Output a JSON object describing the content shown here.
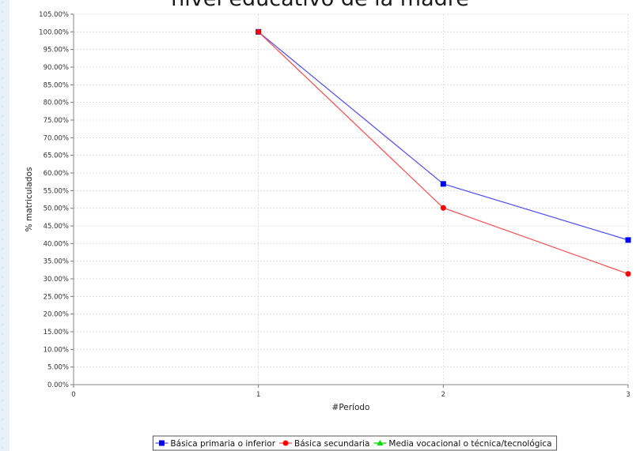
{
  "chart_data": {
    "type": "line",
    "title": "nivel educativo de la madre",
    "xlabel": "#Período",
    "ylabel": "% matriculados",
    "xlim": [
      0,
      3
    ],
    "ylim": [
      0,
      105
    ],
    "x_ticks": [
      "0",
      "1",
      "2",
      "3"
    ],
    "y_ticks": [
      "0.00%",
      "5.00%",
      "10.00%",
      "15.00%",
      "20.00%",
      "25.00%",
      "30.00%",
      "35.00%",
      "40.00%",
      "45.00%",
      "50.00%",
      "55.00%",
      "60.00%",
      "65.00%",
      "70.00%",
      "75.00%",
      "80.00%",
      "85.00%",
      "90.00%",
      "95.00%",
      "100.00%",
      "105.00%"
    ],
    "grid": true,
    "legend_position": "bottom",
    "series": [
      {
        "name": "Básica primaria o inferior",
        "color": "#4d4dff",
        "marker": "square",
        "marker_color": "#0000ff",
        "x": [
          1,
          2,
          3
        ],
        "y": [
          100.0,
          56.9,
          41.0
        ]
      },
      {
        "name": "Básica secundaria",
        "color": "#ff4d4d",
        "marker": "circle",
        "marker_color": "#ff0000",
        "x": [
          1,
          2,
          3
        ],
        "y": [
          100.0,
          50.1,
          31.4
        ]
      },
      {
        "name": "Media vocacional o técnica/tecnológica",
        "color": "#00cc00",
        "marker": "triangle",
        "marker_color": "#00dd00",
        "x": [],
        "y": []
      }
    ]
  }
}
